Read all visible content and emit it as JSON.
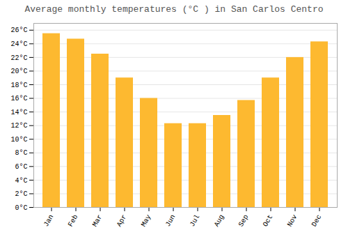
{
  "chart_data": {
    "type": "bar",
    "title": "Average monthly temperatures (°C ) in San Carlos Centro",
    "categories": [
      "Jan",
      "Feb",
      "Mar",
      "Apr",
      "May",
      "Jun",
      "Jul",
      "Aug",
      "Sep",
      "Oct",
      "Nov",
      "Dec"
    ],
    "values": [
      25.5,
      24.7,
      22.5,
      19.0,
      16.0,
      12.3,
      12.3,
      13.5,
      15.7,
      19.0,
      22.0,
      24.3
    ],
    "color": "#FDB930",
    "ylim": [
      0,
      27
    ],
    "yticks": [
      {
        "value": 0,
        "label": "0°C"
      },
      {
        "value": 2,
        "label": "2°C"
      },
      {
        "value": 4,
        "label": "4°C"
      },
      {
        "value": 6,
        "label": "6°C"
      },
      {
        "value": 8,
        "label": "8°C"
      },
      {
        "value": 10,
        "label": "10°C"
      },
      {
        "value": 12,
        "label": "12°C"
      },
      {
        "value": 14,
        "label": "14°C"
      },
      {
        "value": 16,
        "label": "16°C"
      },
      {
        "value": 18,
        "label": "18°C"
      },
      {
        "value": 20,
        "label": "20°C"
      },
      {
        "value": 22,
        "label": "22°C"
      },
      {
        "value": 24,
        "label": "24°C"
      },
      {
        "value": 26,
        "label": "26°C"
      }
    ],
    "grid": true
  }
}
